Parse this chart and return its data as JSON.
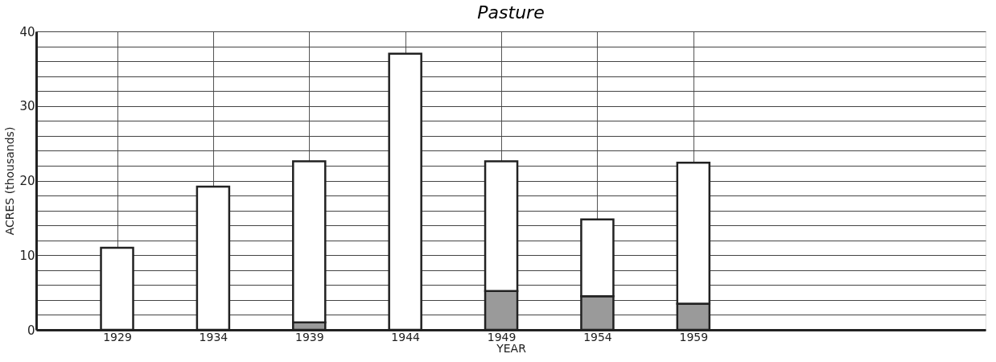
{
  "chart_data": {
    "type": "bar",
    "title": "Pasture",
    "xlabel": "YEAR",
    "ylabel": "ACRES  (thousands)",
    "x": [
      1929,
      1934,
      1939,
      1944,
      1949,
      1954,
      1959
    ],
    "stacked": true,
    "series": [
      {
        "color": "#9a9a9a",
        "values": [
          null,
          null,
          1.0,
          null,
          5.2,
          4.5,
          3.5
        ]
      },
      {
        "color": "#ffffff",
        "values": [
          11,
          19.2,
          21.6,
          37,
          17.4,
          10.3,
          18.9
        ]
      }
    ],
    "xlim": [
      1925,
      1974
    ],
    "xticks": [
      1929,
      1934,
      1939,
      1944,
      1949,
      1954,
      1959
    ],
    "ylim": [
      0,
      40
    ],
    "yticks": [
      0,
      {
        "value": 2,
        "label": null
      },
      {
        "value": 4,
        "label": null
      },
      {
        "value": 6,
        "label": null
      },
      {
        "value": 8,
        "label": null
      },
      10,
      {
        "value": 12,
        "label": null
      },
      {
        "value": 14,
        "label": null
      },
      {
        "value": 16,
        "label": null
      },
      {
        "value": 18,
        "label": null
      },
      20,
      {
        "value": 22,
        "label": null
      },
      {
        "value": 24,
        "label": null
      },
      {
        "value": 26,
        "label": null
      },
      {
        "value": 28,
        "label": null
      },
      30,
      {
        "value": 32,
        "label": null
      },
      {
        "value": 34,
        "label": null
      },
      {
        "value": 36,
        "label": null
      },
      {
        "value": 38,
        "label": null
      },
      40
    ],
    "grid": true,
    "legend": false
  }
}
